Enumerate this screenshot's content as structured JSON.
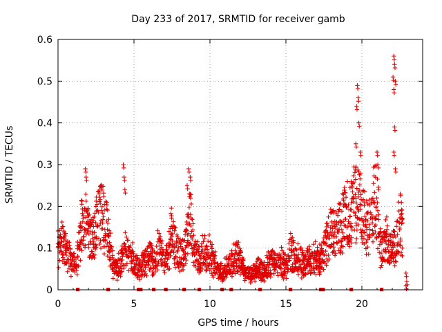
{
  "chart_data": {
    "type": "scatter",
    "title": "Day 233 of 2017, SRMTID for receiver gamb",
    "xlabel": "GPS time / hours",
    "ylabel": "SRMTID / TECUs",
    "xlim": [
      0,
      24
    ],
    "ylim": [
      0,
      0.6
    ],
    "x_ticks": [
      0,
      5,
      10,
      15,
      20
    ],
    "x_tick_labels": [
      "0",
      "5",
      "10",
      "15",
      "20"
    ],
    "y_ticks": [
      0,
      0.1,
      0.2,
      0.3,
      0.4,
      0.5,
      0.6
    ],
    "y_tick_labels": [
      "0",
      "0.1",
      "0.2",
      "0.3",
      "0.4",
      "0.5",
      "0.6"
    ],
    "grid": true,
    "marker": "+",
    "color": "#e00000",
    "trend": {
      "x": [
        0,
        0.3,
        0.6,
        0.9,
        1.2,
        1.5,
        1.8,
        2.1,
        2.4,
        2.7,
        3.0,
        3.3,
        3.6,
        3.9,
        4.2,
        4.5,
        4.8,
        5.1,
        5.4,
        5.7,
        6.0,
        6.3,
        6.6,
        6.9,
        7.2,
        7.5,
        7.8,
        8.1,
        8.4,
        8.7,
        9.0,
        9.3,
        9.6,
        9.9,
        10.2,
        10.5,
        10.8,
        11.1,
        11.4,
        11.7,
        12.0,
        12.3,
        12.6,
        12.9,
        13.2,
        13.5,
        13.8,
        14.1,
        14.4,
        14.7,
        15.0,
        15.3,
        15.6,
        15.9,
        16.2,
        16.5,
        16.8,
        17.1,
        17.4,
        17.7,
        18.0,
        18.3,
        18.6,
        18.9,
        19.2,
        19.5,
        19.8,
        20.1,
        20.4,
        20.7,
        21.0,
        21.3,
        21.6,
        21.9,
        22.2,
        22.5,
        22.7
      ],
      "y": [
        0.1,
        0.11,
        0.09,
        0.07,
        0.06,
        0.14,
        0.16,
        0.12,
        0.13,
        0.18,
        0.17,
        0.14,
        0.06,
        0.05,
        0.07,
        0.1,
        0.08,
        0.06,
        0.05,
        0.07,
        0.08,
        0.07,
        0.1,
        0.08,
        0.07,
        0.14,
        0.1,
        0.08,
        0.1,
        0.17,
        0.09,
        0.07,
        0.09,
        0.1,
        0.07,
        0.05,
        0.04,
        0.05,
        0.06,
        0.09,
        0.07,
        0.04,
        0.03,
        0.04,
        0.05,
        0.04,
        0.06,
        0.07,
        0.06,
        0.07,
        0.05,
        0.09,
        0.08,
        0.07,
        0.06,
        0.07,
        0.08,
        0.07,
        0.08,
        0.12,
        0.14,
        0.13,
        0.15,
        0.17,
        0.19,
        0.21,
        0.2,
        0.18,
        0.15,
        0.2,
        0.22,
        0.08,
        0.12,
        0.09,
        0.1,
        0.18,
        0.12
      ]
    },
    "spikes": [
      {
        "x": 1.8,
        "y": 0.29
      },
      {
        "x": 1.85,
        "y": 0.27
      },
      {
        "x": 2.7,
        "y": 0.23
      },
      {
        "x": 4.3,
        "y": 0.3
      },
      {
        "x": 4.35,
        "y": 0.27
      },
      {
        "x": 4.4,
        "y": 0.24
      },
      {
        "x": 8.6,
        "y": 0.29
      },
      {
        "x": 8.7,
        "y": 0.27
      },
      {
        "x": 8.5,
        "y": 0.25
      },
      {
        "x": 19.7,
        "y": 0.49
      },
      {
        "x": 19.75,
        "y": 0.46
      },
      {
        "x": 19.65,
        "y": 0.44
      },
      {
        "x": 19.8,
        "y": 0.4
      },
      {
        "x": 19.6,
        "y": 0.35
      },
      {
        "x": 19.9,
        "y": 0.33
      },
      {
        "x": 21.0,
        "y": 0.33
      },
      {
        "x": 21.05,
        "y": 0.3
      },
      {
        "x": 22.1,
        "y": 0.56
      },
      {
        "x": 22.15,
        "y": 0.54
      },
      {
        "x": 22.05,
        "y": 0.51
      },
      {
        "x": 22.2,
        "y": 0.5
      },
      {
        "x": 22.1,
        "y": 0.48
      },
      {
        "x": 22.15,
        "y": 0.39
      },
      {
        "x": 22.1,
        "y": 0.33
      },
      {
        "x": 22.2,
        "y": 0.29
      },
      {
        "x": 22.9,
        "y": 0.04
      },
      {
        "x": 22.95,
        "y": 0.02
      },
      {
        "x": 22.9,
        "y": 0.01
      }
    ],
    "baseline_markers_x": [
      1.3,
      3.3,
      5.3,
      5.45,
      6.3,
      7.1,
      8.3,
      9.3,
      10.8,
      11.4,
      13.3,
      15.3,
      17.3,
      17.45,
      19.3,
      21.3
    ]
  }
}
